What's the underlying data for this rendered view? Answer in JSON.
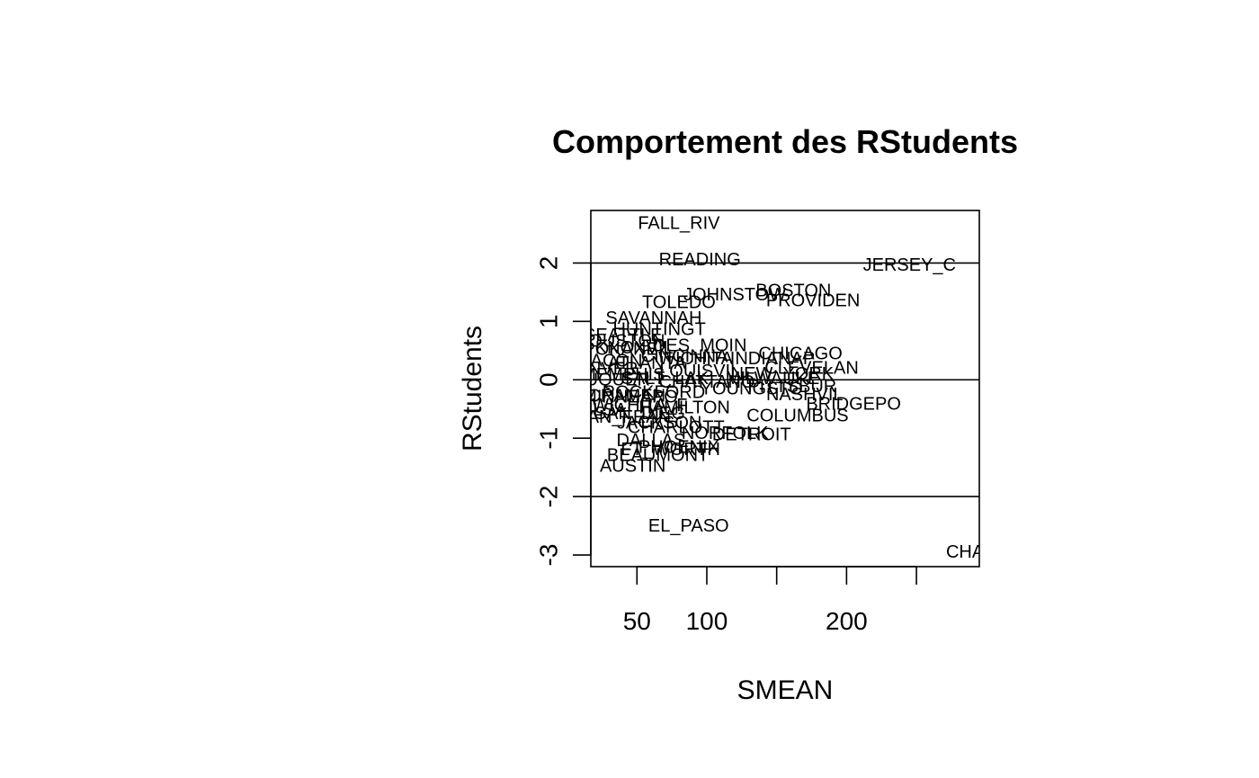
{
  "chart_data": {
    "type": "scatter",
    "title": "Comportement des RStudents",
    "xlabel": "SMEAN",
    "ylabel": "RStudents",
    "xlim": [
      17,
      295
    ],
    "ylim": [
      -3.2,
      2.9
    ],
    "x_ticks": [
      50,
      100,
      150,
      200,
      250
    ],
    "x_tick_labels": [
      "50",
      "100",
      "",
      "200",
      ""
    ],
    "y_ticks": [
      -3,
      -2,
      -1,
      0,
      1,
      2
    ],
    "y_tick_labels": [
      "-3",
      "-2",
      "-1",
      "0",
      "1",
      "2"
    ],
    "h_lines": [
      -2,
      0,
      2
    ],
    "grid": false,
    "legend": "none",
    "points": [
      {
        "label": "FALL_RIV",
        "x": 80,
        "y": 2.68
      },
      {
        "label": "READING",
        "x": 95,
        "y": 2.05
      },
      {
        "label": "JERSEY_C",
        "x": 245,
        "y": 1.96
      },
      {
        "label": "BOSTON",
        "x": 162,
        "y": 1.52
      },
      {
        "label": "JOHNSTOW",
        "x": 120,
        "y": 1.45
      },
      {
        "label": "PROVIDEN",
        "x": 176,
        "y": 1.35
      },
      {
        "label": "TOLEDO",
        "x": 80,
        "y": 1.32
      },
      {
        "label": "SAVANNAH",
        "x": 62,
        "y": 1.05
      },
      {
        "label": "HUNTINGT",
        "x": 66,
        "y": 0.86
      },
      {
        "label": "SEATTLE",
        "x": 40,
        "y": 0.76
      },
      {
        "label": "HOUSTON",
        "x": 38,
        "y": 0.66
      },
      {
        "label": "DES_MOIN",
        "x": 95,
        "y": 0.58
      },
      {
        "label": "KNOXVIL",
        "x": 48,
        "y": 0.54
      },
      {
        "label": "SPOKANE",
        "x": 34,
        "y": 0.52
      },
      {
        "label": "CHICAGO",
        "x": 167,
        "y": 0.44
      },
      {
        "label": "CINCINNA",
        "x": 84,
        "y": 0.4
      },
      {
        "label": "INDIANAP",
        "x": 147,
        "y": 0.36
      },
      {
        "label": "WICHITA",
        "x": 92,
        "y": 0.36
      },
      {
        "label": "MACON",
        "x": 30,
        "y": 0.32
      },
      {
        "label": "ATLANTA",
        "x": 57,
        "y": 0.28
      },
      {
        "label": "CLEVELAN",
        "x": 175,
        "y": 0.2
      },
      {
        "label": "DENVER",
        "x": 24,
        "y": 0.18
      },
      {
        "label": "LOUISVIL",
        "x": 95,
        "y": 0.14
      },
      {
        "label": "NEW_YORK",
        "x": 154,
        "y": 0.1
      },
      {
        "label": "MEMPHIS",
        "x": 40,
        "y": 0.08
      },
      {
        "label": "MILWAUKE",
        "x": 147,
        "y": 0.02
      },
      {
        "label": "SALT_LAK",
        "x": 70,
        "y": 0.02
      },
      {
        "label": "ALBUQUER",
        "x": 24,
        "y": 0.0
      },
      {
        "label": "CHATTANO",
        "x": 100,
        "y": -0.04
      },
      {
        "label": "PITTSBUR",
        "x": 161,
        "y": -0.12
      },
      {
        "label": "YOUNGSTO",
        "x": 132,
        "y": -0.16
      },
      {
        "label": "ROCKFORD",
        "x": 62,
        "y": -0.22
      },
      {
        "label": "NASHVIL",
        "x": 170,
        "y": -0.26
      },
      {
        "label": "SACRAMEN",
        "x": 34,
        "y": -0.28
      },
      {
        "label": "MINNEAPO",
        "x": 45,
        "y": -0.3
      },
      {
        "label": "BRIDGEPO",
        "x": 205,
        "y": -0.42
      },
      {
        "label": "WICHITA_F",
        "x": 52,
        "y": -0.44
      },
      {
        "label": "HAMILTON",
        "x": 84,
        "y": -0.48
      },
      {
        "label": "TULSA",
        "x": 22,
        "y": -0.52
      },
      {
        "label": "SAN_DIEG",
        "x": 52,
        "y": -0.58
      },
      {
        "label": "COLUMBUS",
        "x": 165,
        "y": -0.62
      },
      {
        "label": "SAN_FRAN",
        "x": 40,
        "y": -0.64
      },
      {
        "label": "JACKSON",
        "x": 66,
        "y": -0.74
      },
      {
        "label": "CHARLOTT",
        "x": 78,
        "y": -0.82
      },
      {
        "label": "NORFOLK",
        "x": 113,
        "y": -0.92
      },
      {
        "label": "DETROIT",
        "x": 132,
        "y": -0.94
      },
      {
        "label": "DALLAS",
        "x": 60,
        "y": -1.04
      },
      {
        "label": "PHOENIX",
        "x": 80,
        "y": -1.16
      },
      {
        "label": "FT_WORTH",
        "x": 74,
        "y": -1.2
      },
      {
        "label": "BEAUMONT",
        "x": 65,
        "y": -1.3
      },
      {
        "label": "AUSTIN",
        "x": 47,
        "y": -1.48
      },
      {
        "label": "EL_PASO",
        "x": 87,
        "y": -2.51
      },
      {
        "label": "CHARL",
        "x": 293,
        "y": -2.95
      }
    ]
  }
}
